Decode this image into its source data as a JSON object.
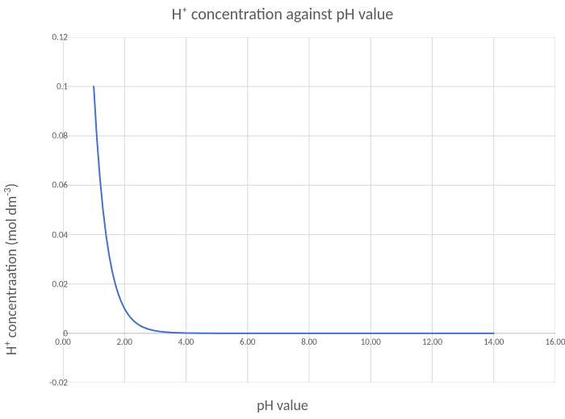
{
  "chart": {
    "type": "line",
    "title": "H⁺ concentration against pH value",
    "xlabel": "pH value",
    "ylabel_html": "H<sup>+</sup> concentraation (mol dm<sup>-3</sup>)",
    "title_fontsize": 20,
    "label_fontsize": 18,
    "tick_fontsize": 11,
    "background_color": "#ffffff",
    "grid_color": "#d9d9d9",
    "line_color": "#4472c4",
    "line_width": 2,
    "text_color": "#595959",
    "xlim": [
      0,
      16
    ],
    "ylim": [
      -0.02,
      0.12
    ],
    "x_ticks": [
      0.0,
      2.0,
      4.0,
      6.0,
      8.0,
      10.0,
      12.0,
      14.0,
      16.0
    ],
    "x_tick_labels": [
      "0.00",
      "2.00",
      "4.00",
      "6.00",
      "8.00",
      "10.00",
      "12.00",
      "14.00",
      "16.00"
    ],
    "y_ticks": [
      -0.02,
      0,
      0.02,
      0.04,
      0.06,
      0.08,
      0.1,
      0.12
    ],
    "y_tick_labels": [
      "-0.02",
      "0",
      "0.02",
      "0.04",
      "0.06",
      "0.08",
      "0.1",
      "0.12"
    ],
    "x_values": [
      1.0,
      1.1,
      1.2,
      1.3,
      1.4,
      1.5,
      1.6,
      1.7,
      1.8,
      1.9,
      2.0,
      2.1,
      2.2,
      2.3,
      2.4,
      2.5,
      2.6,
      2.8,
      3.0,
      3.2,
      3.5,
      4.0,
      4.5,
      5.0,
      6.0,
      7.0,
      8.0,
      9.0,
      10.0,
      11.0,
      12.0,
      13.0,
      14.0
    ],
    "y_values": [
      0.1,
      0.07943,
      0.0631,
      0.05012,
      0.03981,
      0.03162,
      0.02512,
      0.01995,
      0.01585,
      0.01259,
      0.01,
      0.007943,
      0.00631,
      0.005012,
      0.003981,
      0.003162,
      0.002512,
      0.001585,
      0.001,
      0.000631,
      0.000316,
      0.0001,
      3.16e-05,
      1e-05,
      1e-06,
      1e-07,
      1e-08,
      1e-09,
      1e-10,
      1e-11,
      1e-12,
      1e-13,
      1e-14
    ]
  }
}
